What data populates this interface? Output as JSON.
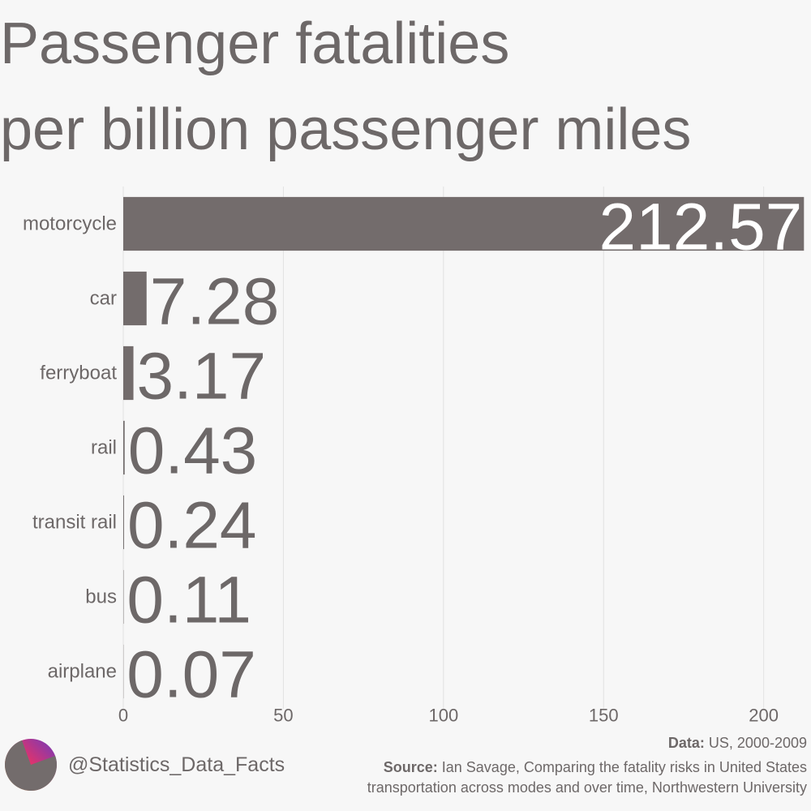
{
  "chart_data": {
    "type": "bar",
    "orientation": "horizontal",
    "title_lines": [
      "Passenger fatalities",
      "per billion passenger miles"
    ],
    "categories": [
      "motorcycle",
      "car",
      "ferryboat",
      "rail",
      "transit rail",
      "bus",
      "airplane"
    ],
    "values": [
      212.57,
      7.28,
      3.17,
      0.43,
      0.24,
      0.11,
      0.07
    ],
    "color": "#736c6c",
    "xlim": [
      0,
      213
    ],
    "xticks": [
      0,
      50,
      100,
      150,
      200
    ],
    "grid": true
  },
  "footer": {
    "handle": "@Statistics_Data_Facts",
    "data_label": "Data:",
    "data_text": "US, 2000-2009",
    "source_label": "Source:",
    "source_lines": [
      "Ian Savage, Comparing the fatality risks in United States",
      "transportation across modes and over time, Northwestern University"
    ]
  }
}
